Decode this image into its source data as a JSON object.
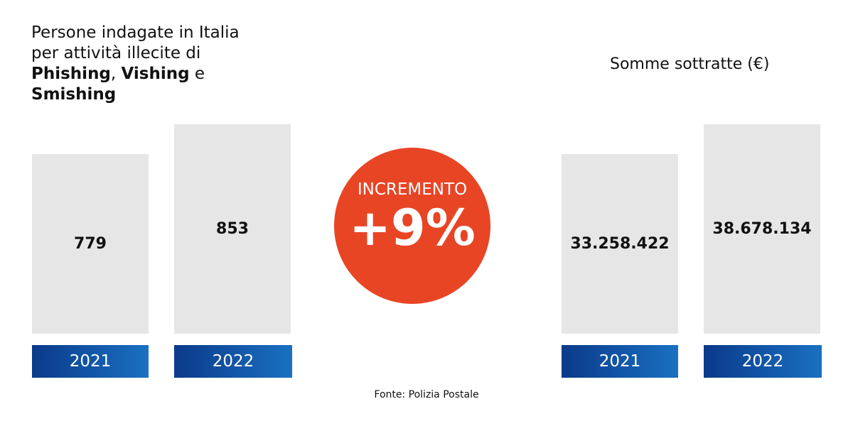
{
  "left_panel": {
    "title_segments": [
      {
        "text": "Persone indagate in Italia"
      },
      {
        "text": "per attività illecite di"
      },
      {
        "text": "Phishing",
        "bold": true
      },
      {
        "text": ", "
      },
      {
        "text": "Vishing",
        "bold": true
      },
      {
        "text": " e"
      },
      {
        "text": "Smishing",
        "bold": true
      }
    ],
    "items": [
      {
        "year": "2021",
        "value": "779"
      },
      {
        "year": "2022",
        "value": "853"
      }
    ]
  },
  "center": {
    "label": "INCREMENTO",
    "value": "+9%"
  },
  "right_panel": {
    "title": "Somme sottratte (€)",
    "items": [
      {
        "year": "2021",
        "value": "33.258.422"
      },
      {
        "year": "2022",
        "value": "38.678.134"
      }
    ]
  },
  "source": "Fonte: Polizia Postale"
}
